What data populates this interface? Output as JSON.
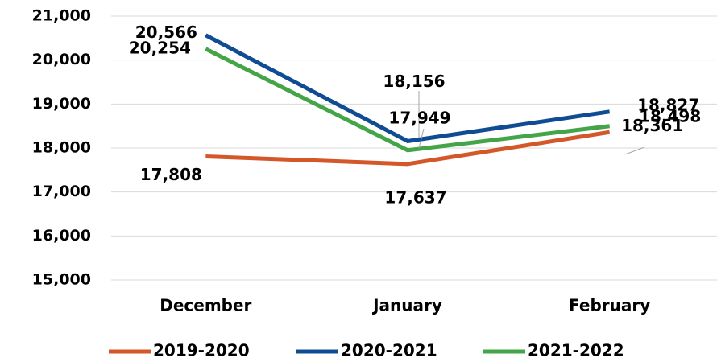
{
  "chart_data": {
    "type": "line",
    "categories": [
      "December",
      "January",
      "February"
    ],
    "series": [
      {
        "name": "2019-2020",
        "color": "#d4572a",
        "values": [
          17808,
          17637,
          18361
        ],
        "value_labels": [
          "17,808",
          "17,637",
          "18,361"
        ]
      },
      {
        "name": "2020-2021",
        "color": "#0f4c94",
        "values": [
          20566,
          18156,
          18827
        ],
        "value_labels": [
          "20,566",
          "18,156",
          "18,827"
        ]
      },
      {
        "name": "2021-2022",
        "color": "#44a548",
        "values": [
          20254,
          17949,
          18498
        ],
        "value_labels": [
          "20,254",
          "17,949",
          "18,498"
        ]
      }
    ],
    "ylim": [
      15000,
      21000
    ],
    "yticks": [
      {
        "value": 15000,
        "label": "15,000"
      },
      {
        "value": 16000,
        "label": "16,000"
      },
      {
        "value": 17000,
        "label": "17,000"
      },
      {
        "value": 18000,
        "label": "18,000"
      },
      {
        "value": 19000,
        "label": "19,000"
      },
      {
        "value": 20000,
        "label": "20,000"
      },
      {
        "value": 21000,
        "label": "21,000"
      }
    ],
    "grid": true,
    "legend": "bottom"
  }
}
